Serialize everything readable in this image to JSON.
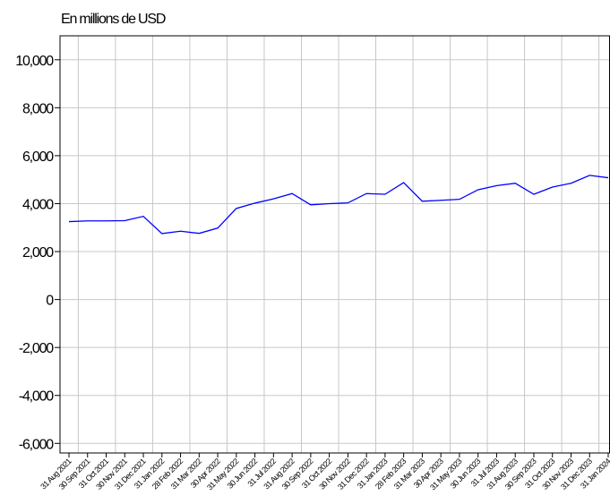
{
  "chart_data": {
    "type": "line",
    "title": "En millions de USD",
    "categories": [
      "31 Aug 2021",
      "30 Sep 2021",
      "31 Oct 2021",
      "30 Nov 2021",
      "31 Dec 2021",
      "31 Jan 2022",
      "28 Feb 2022",
      "31 Mar 2022",
      "30 Apr 2022",
      "31 May 2022",
      "30 Jun 2022",
      "31 Jul 2022",
      "31 Aug 2022",
      "30 Sep 2022",
      "31 Oct 2022",
      "30 Nov 2022",
      "31 Dec 2022",
      "31 Jan 2023",
      "28 Feb 2023",
      "31 Mar 2023",
      "30 Apr 2023",
      "31 May 2023",
      "30 Jun 2023",
      "31 Jul 2023",
      "31 Aug 2023",
      "30 Sep 2023",
      "31 Oct 2023",
      "30 Nov 2023",
      "31 Dec 2023",
      "31 Jan 2024"
    ],
    "series": [
      {
        "color": "#0000ff",
        "values": [
          3250,
          3280,
          3280,
          3290,
          3470,
          2750,
          2850,
          2760,
          2980,
          3800,
          4020,
          4200,
          4420,
          3950,
          4000,
          4030,
          4420,
          4390,
          4880,
          4100,
          4140,
          4180,
          4580,
          4750,
          4850,
          4390,
          4690,
          4850,
          5180,
          5080
        ]
      }
    ],
    "ylim": [
      -6400,
      11000
    ],
    "yticks": [
      {
        "value": -6000,
        "label": "-6,000"
      },
      {
        "value": -4000,
        "label": "-4,000"
      },
      {
        "value": -2000,
        "label": "-2,000"
      },
      0,
      {
        "value": 2000,
        "label": "2,000"
      },
      {
        "value": 4000,
        "label": "4,000"
      },
      {
        "value": 6000,
        "label": "6,000"
      },
      {
        "value": 8000,
        "label": "8,000"
      },
      {
        "value": 10000,
        "label": "10,000"
      }
    ],
    "grid": true
  }
}
